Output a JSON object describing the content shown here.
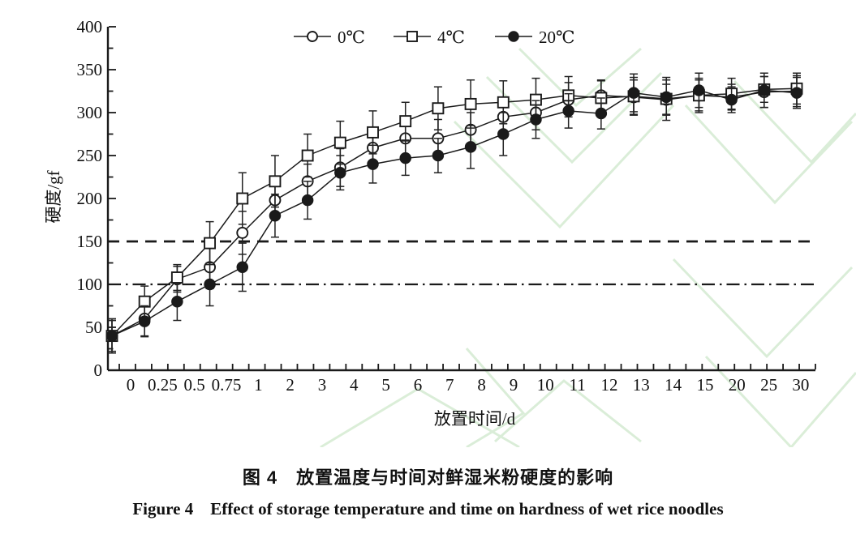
{
  "figure": {
    "caption_cn": "图 4　放置温度与时间对鲜湿米粉硬度的影响",
    "caption_en": "Figure 4　Effect of storage temperature and time on hardness of wet rice noodles"
  },
  "chart_data": {
    "type": "line",
    "title": "",
    "xlabel": "放置时间/d",
    "ylabel": "硬度/gf",
    "ylim": [
      0,
      400
    ],
    "ytick_interval": 50,
    "yminor_interval": 25,
    "grid": false,
    "legend_position": "top",
    "categories": [
      "0",
      "0.25",
      "0.5",
      "0.75",
      "1",
      "2",
      "3",
      "4",
      "5",
      "6",
      "7",
      "8",
      "9",
      "10",
      "11",
      "12",
      "13",
      "14",
      "15",
      "20",
      "25",
      "30"
    ],
    "reference_lines": [
      {
        "y": 150,
        "style": "dashed"
      },
      {
        "y": 100,
        "style": "dash-dot"
      }
    ],
    "series": [
      {
        "name": "0℃",
        "marker": "circle-open",
        "values": [
          40,
          60,
          106,
          120,
          160,
          198,
          220,
          236,
          259,
          270,
          270,
          280,
          295,
          300,
          315,
          320,
          318,
          315,
          320,
          318,
          324,
          325
        ],
        "errors": [
          20,
          20,
          15,
          25,
          25,
          22,
          20,
          22,
          18,
          20,
          22,
          20,
          18,
          20,
          20,
          18,
          20,
          18,
          18,
          15,
          18,
          18
        ]
      },
      {
        "name": "4℃",
        "marker": "square-open",
        "values": [
          40,
          80,
          108,
          148,
          200,
          220,
          250,
          265,
          277,
          290,
          305,
          310,
          312,
          315,
          320,
          317,
          319,
          316,
          320,
          322,
          327,
          328
        ],
        "errors": [
          18,
          18,
          15,
          25,
          30,
          30,
          25,
          25,
          25,
          22,
          25,
          28,
          25,
          25,
          22,
          20,
          22,
          25,
          20,
          18,
          15,
          18
        ]
      },
      {
        "name": "20℃",
        "marker": "circle-filled",
        "values": [
          40,
          57,
          80,
          100,
          120,
          180,
          198,
          230,
          240,
          247,
          250,
          260,
          275,
          292,
          302,
          299,
          323,
          318,
          326,
          315,
          326,
          323
        ],
        "errors": [
          18,
          18,
          22,
          25,
          28,
          25,
          22,
          20,
          22,
          20,
          20,
          25,
          25,
          22,
          20,
          18,
          22,
          20,
          20,
          15,
          20,
          18
        ]
      }
    ]
  },
  "colors": {
    "line": "#1a1a1a",
    "marker_fill": "#ffffff",
    "watermark": "#d7ecd4",
    "background": "#ffffff"
  }
}
